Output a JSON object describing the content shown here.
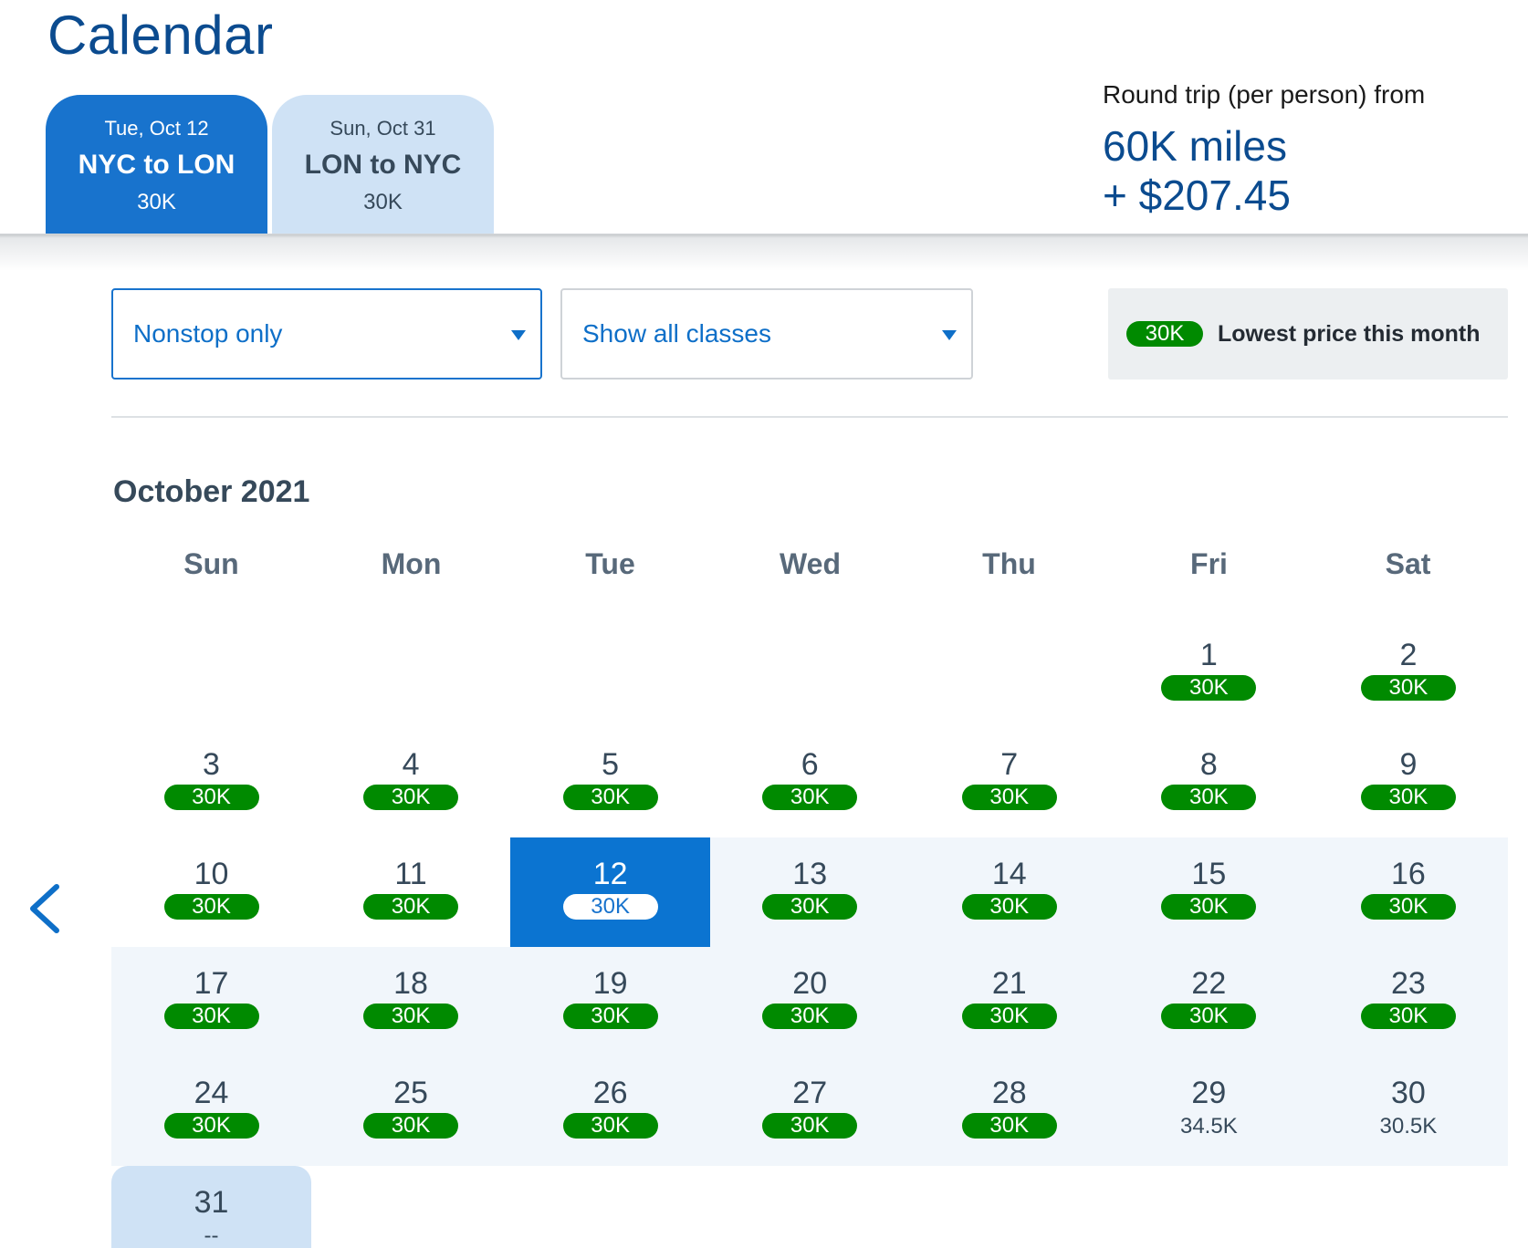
{
  "page": {
    "title": "Calendar"
  },
  "tabs": [
    {
      "date": "Tue, Oct 12",
      "route": "NYC to LON",
      "price": "30K",
      "active": true
    },
    {
      "date": "Sun, Oct 31",
      "route": "LON to NYC",
      "price": "30K",
      "active": false
    }
  ],
  "summary": {
    "label": "Round trip (per person) from",
    "miles": "60K miles",
    "cash": "+ $207.45"
  },
  "filters": {
    "stops": {
      "value": "Nonstop only"
    },
    "classes": {
      "value": "Show all classes"
    }
  },
  "legend": {
    "badge": "30K",
    "text": "Lowest price this month"
  },
  "calendar": {
    "month": "October 2021",
    "weekdays": [
      "Sun",
      "Mon",
      "Tue",
      "Wed",
      "Thu",
      "Fri",
      "Sat"
    ],
    "first_weekday_index": 5,
    "selected_day": 12,
    "return_day": 31,
    "days": [
      {
        "day": "1",
        "price": "30K",
        "lowest": true
      },
      {
        "day": "2",
        "price": "30K",
        "lowest": true
      },
      {
        "day": "3",
        "price": "30K",
        "lowest": true
      },
      {
        "day": "4",
        "price": "30K",
        "lowest": true
      },
      {
        "day": "5",
        "price": "30K",
        "lowest": true
      },
      {
        "day": "6",
        "price": "30K",
        "lowest": true
      },
      {
        "day": "7",
        "price": "30K",
        "lowest": true
      },
      {
        "day": "8",
        "price": "30K",
        "lowest": true
      },
      {
        "day": "9",
        "price": "30K",
        "lowest": true
      },
      {
        "day": "10",
        "price": "30K",
        "lowest": true
      },
      {
        "day": "11",
        "price": "30K",
        "lowest": true
      },
      {
        "day": "12",
        "price": "30K",
        "lowest": true
      },
      {
        "day": "13",
        "price": "30K",
        "lowest": true
      },
      {
        "day": "14",
        "price": "30K",
        "lowest": true
      },
      {
        "day": "15",
        "price": "30K",
        "lowest": true
      },
      {
        "day": "16",
        "price": "30K",
        "lowest": true
      },
      {
        "day": "17",
        "price": "30K",
        "lowest": true
      },
      {
        "day": "18",
        "price": "30K",
        "lowest": true
      },
      {
        "day": "19",
        "price": "30K",
        "lowest": true
      },
      {
        "day": "20",
        "price": "30K",
        "lowest": true
      },
      {
        "day": "21",
        "price": "30K",
        "lowest": true
      },
      {
        "day": "22",
        "price": "30K",
        "lowest": true
      },
      {
        "day": "23",
        "price": "30K",
        "lowest": true
      },
      {
        "day": "24",
        "price": "30K",
        "lowest": true
      },
      {
        "day": "25",
        "price": "30K",
        "lowest": true
      },
      {
        "day": "26",
        "price": "30K",
        "lowest": true
      },
      {
        "day": "27",
        "price": "30K",
        "lowest": true
      },
      {
        "day": "28",
        "price": "30K",
        "lowest": true
      },
      {
        "day": "29",
        "price": "34.5K",
        "lowest": false
      },
      {
        "day": "30",
        "price": "30.5K",
        "lowest": false
      },
      {
        "day": "31",
        "price": "--",
        "lowest": false
      }
    ]
  },
  "icons": {
    "prev": "chevron-left-icon",
    "dropdown": "caret-down-icon"
  },
  "colors": {
    "brand_blue": "#0b4b8f",
    "accent_blue": "#1873cd",
    "selected_blue": "#0b74d1",
    "tab_inactive": "#cfe2f5",
    "range_bg": "#f1f6fb",
    "lowest_green": "#008a00"
  }
}
